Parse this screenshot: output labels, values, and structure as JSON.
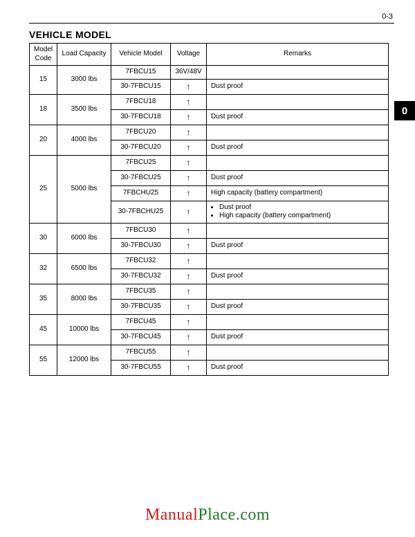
{
  "page_label": "0-3",
  "title": "VEHICLE MODEL",
  "tab": "0",
  "arrow": "↑",
  "headers": {
    "model_code": "Model\nCode",
    "load_capacity": "Load Capacity",
    "vehicle_model": "Vehicle Model",
    "voltage": "Voltage",
    "remarks": "Remarks"
  },
  "voltage_first": "36V/48V",
  "groups": [
    {
      "code": "15",
      "load": "3000 lbs",
      "rows": [
        {
          "vm": "7FBCU15",
          "voltage": "36V/48V",
          "remarks": ""
        },
        {
          "vm": "30-7FBCU15",
          "voltage": "↑",
          "remarks": "Dust proof"
        }
      ]
    },
    {
      "code": "18",
      "load": "3500 lbs",
      "rows": [
        {
          "vm": "7FBCU18",
          "voltage": "↑",
          "remarks": ""
        },
        {
          "vm": "30-7FBCU18",
          "voltage": "↑",
          "remarks": "Dust proof"
        }
      ]
    },
    {
      "code": "20",
      "load": "4000 lbs",
      "rows": [
        {
          "vm": "7FBCU20",
          "voltage": "↑",
          "remarks": ""
        },
        {
          "vm": "30-7FBCU20",
          "voltage": "↑",
          "remarks": "Dust proof"
        }
      ]
    },
    {
      "code": "25",
      "load": "5000 lbs",
      "rows": [
        {
          "vm": "7FBCU25",
          "voltage": "↑",
          "remarks": ""
        },
        {
          "vm": "30-7FBCU25",
          "voltage": "↑",
          "remarks": "Dust proof"
        },
        {
          "vm": "7FBCHU25",
          "voltage": "↑",
          "remarks": "High capacity (battery compartment)"
        },
        {
          "vm": "30-7FBCHU25",
          "voltage": "↑",
          "remarks_list": [
            "Dust proof",
            "High capacity (battery compartment)"
          ]
        }
      ]
    },
    {
      "code": "30",
      "load": "6000 lbs",
      "rows": [
        {
          "vm": "7FBCU30",
          "voltage": "↑",
          "remarks": ""
        },
        {
          "vm": "30-7FBCU30",
          "voltage": "↑",
          "remarks": "Dust proof"
        }
      ]
    },
    {
      "code": "32",
      "load": "6500 lbs",
      "rows": [
        {
          "vm": "7FBCU32",
          "voltage": "↑",
          "remarks": ""
        },
        {
          "vm": "30-7FBCU32",
          "voltage": "↑",
          "remarks": "Dust proof"
        }
      ]
    },
    {
      "code": "35",
      "load": "8000 lbs",
      "rows": [
        {
          "vm": "7FBCU35",
          "voltage": "↑",
          "remarks": ""
        },
        {
          "vm": "30-7FBCU35",
          "voltage": "↑",
          "remarks": "Dust proof"
        }
      ]
    },
    {
      "code": "45",
      "load": "10000 lbs",
      "rows": [
        {
          "vm": "7FBCU45",
          "voltage": "↑",
          "remarks": ""
        },
        {
          "vm": "30-7FBCU45",
          "voltage": "↑",
          "remarks": "Dust proof"
        }
      ]
    },
    {
      "code": "55",
      "load": "12000 lbs",
      "rows": [
        {
          "vm": "7FBCU55",
          "voltage": "↑",
          "remarks": ""
        },
        {
          "vm": "30-7FBCU55",
          "voltage": "↑",
          "remarks": "Dust proof"
        }
      ]
    }
  ],
  "watermark": {
    "p1": {
      "text": "Manual",
      "color": "#d11919"
    },
    "p2": {
      "text": "Place.com",
      "color": "#1f7a1f"
    }
  },
  "colors": {
    "border": "#000000",
    "text": "#000000",
    "background": "#ffffff"
  }
}
